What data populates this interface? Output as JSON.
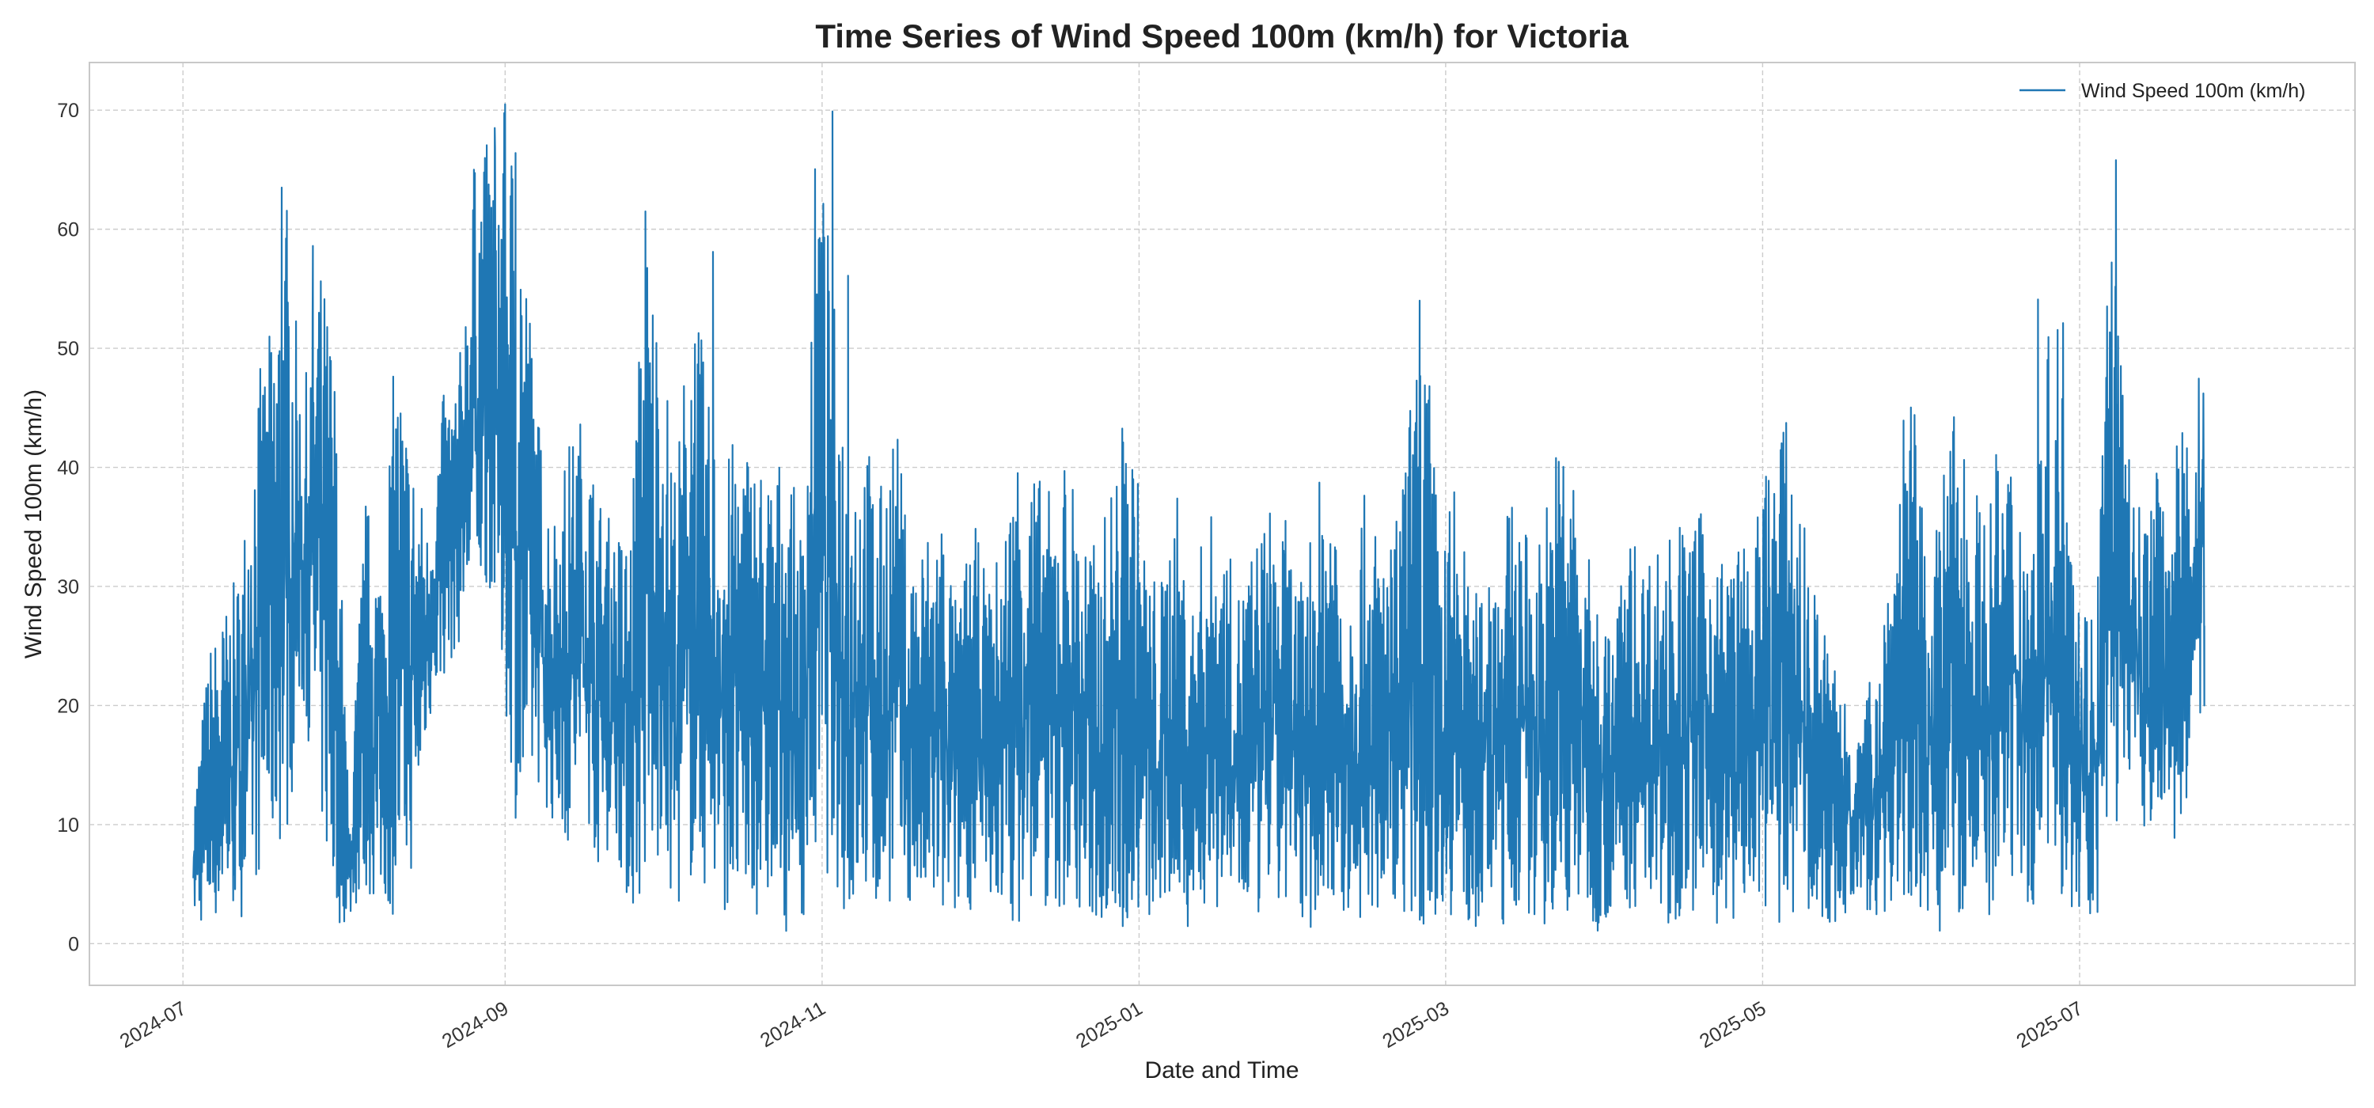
{
  "chart_data": {
    "type": "line",
    "title": "Time Series of Wind Speed 100m (km/h) for Victoria",
    "xlabel": "Date and Time",
    "ylabel": "Wind Speed 100m (km/h)",
    "x_range": [
      "2024-06-13",
      "2025-08-23"
    ],
    "ylim": [
      -3.5,
      74
    ],
    "x_ticks": [
      "2024-07-01",
      "2024-09-01",
      "2024-11-01",
      "2025-01-01",
      "2025-03-01",
      "2025-05-01",
      "2025-07-01"
    ],
    "x_tick_labels": [
      "2024-07",
      "2024-09",
      "2024-11",
      "2025-01",
      "2025-03",
      "2025-05",
      "2025-07"
    ],
    "y_ticks": [
      0,
      10,
      20,
      30,
      40,
      50,
      60,
      70
    ],
    "y_tick_labels": [
      "0",
      "10",
      "20",
      "30",
      "40",
      "50",
      "60",
      "70"
    ],
    "grid": true,
    "legend_position": "top-right",
    "series": [
      {
        "name": "Wind Speed 100m (km/h)",
        "color": "#1f77b4",
        "x": [
          "2024-07-03",
          "2024-07-06",
          "2024-07-09",
          "2024-07-12",
          "2024-07-15",
          "2024-07-18",
          "2024-07-21",
          "2024-07-24",
          "2024-07-27",
          "2024-07-30",
          "2024-08-02",
          "2024-08-05",
          "2024-08-08",
          "2024-08-11",
          "2024-08-14",
          "2024-08-17",
          "2024-08-20",
          "2024-08-23",
          "2024-08-26",
          "2024-08-29",
          "2024-09-01",
          "2024-09-04",
          "2024-09-07",
          "2024-09-10",
          "2024-09-13",
          "2024-09-16",
          "2024-09-19",
          "2024-09-22",
          "2024-09-25",
          "2024-09-28",
          "2024-10-01",
          "2024-10-04",
          "2024-10-07",
          "2024-10-10",
          "2024-10-13",
          "2024-10-16",
          "2024-10-19",
          "2024-10-22",
          "2024-10-25",
          "2024-10-28",
          "2024-10-31",
          "2024-11-03",
          "2024-11-06",
          "2024-11-09",
          "2024-11-12",
          "2024-11-15",
          "2024-11-18",
          "2024-11-21",
          "2024-11-24",
          "2024-11-27",
          "2024-11-30",
          "2024-12-03",
          "2024-12-06",
          "2024-12-09",
          "2024-12-12",
          "2024-12-15",
          "2024-12-18",
          "2024-12-21",
          "2024-12-24",
          "2024-12-27",
          "2024-12-30",
          "2025-01-02",
          "2025-01-05",
          "2025-01-08",
          "2025-01-11",
          "2025-01-14",
          "2025-01-17",
          "2025-01-20",
          "2025-01-23",
          "2025-01-26",
          "2025-01-29",
          "2025-02-01",
          "2025-02-04",
          "2025-02-07",
          "2025-02-10",
          "2025-02-13",
          "2025-02-16",
          "2025-02-19",
          "2025-02-22",
          "2025-02-25",
          "2025-02-28",
          "2025-03-03",
          "2025-03-06",
          "2025-03-09",
          "2025-03-12",
          "2025-03-15",
          "2025-03-18",
          "2025-03-21",
          "2025-03-24",
          "2025-03-27",
          "2025-03-30",
          "2025-04-02",
          "2025-04-05",
          "2025-04-08",
          "2025-04-11",
          "2025-04-14",
          "2025-04-17",
          "2025-04-20",
          "2025-04-23",
          "2025-04-26",
          "2025-04-29",
          "2025-05-02",
          "2025-05-05",
          "2025-05-08",
          "2025-05-11",
          "2025-05-14",
          "2025-05-17",
          "2025-05-20",
          "2025-05-23",
          "2025-05-26",
          "2025-05-29",
          "2025-06-01",
          "2025-06-04",
          "2025-06-07",
          "2025-06-10",
          "2025-06-13",
          "2025-06-16",
          "2025-06-19",
          "2025-06-22",
          "2025-06-25",
          "2025-06-28",
          "2025-07-01",
          "2025-07-04",
          "2025-07-07",
          "2025-07-10",
          "2025-07-13",
          "2025-07-16",
          "2025-07-19",
          "2025-07-22",
          "2025-07-25"
        ],
        "low": [
          2,
          1,
          3,
          2,
          5,
          7,
          9,
          20,
          12,
          1,
          2,
          4,
          3,
          2,
          6,
          18,
          22,
          25,
          28,
          30,
          20,
          6,
          14,
          10,
          8,
          12,
          6,
          9,
          2,
          4,
          5,
          3,
          5,
          4,
          3,
          1,
          2,
          3,
          1,
          2,
          5,
          6,
          1,
          3,
          2,
          4,
          3,
          2,
          1,
          2,
          3,
          2,
          3,
          1,
          4,
          2,
          3,
          2,
          1,
          2,
          0,
          2,
          1,
          3,
          1,
          2,
          3,
          2,
          1,
          3,
          2,
          2,
          1,
          3,
          2,
          1,
          2,
          4,
          2,
          1,
          3,
          2,
          1,
          2,
          1,
          3,
          2,
          1,
          2,
          3,
          1,
          2,
          3,
          2,
          1,
          2,
          3,
          1,
          2,
          1,
          3,
          2,
          1,
          2,
          3,
          1,
          2,
          3,
          2,
          1,
          2,
          3,
          1,
          2,
          3,
          1,
          2,
          4,
          3,
          8,
          3,
          1,
          2,
          5,
          15,
          10,
          5,
          8,
          12,
          20
        ],
        "high": [
          12,
          25,
          28,
          32,
          47,
          52,
          63,
          45,
          58,
          52,
          10,
          38,
          33,
          51,
          42,
          35,
          46,
          48,
          65,
          68,
          70,
          66,
          46,
          36,
          42,
          45,
          38,
          35,
          35,
          61,
          52,
          40,
          58,
          46,
          40,
          44,
          42,
          40,
          42,
          35,
          70,
          56,
          42,
          44,
          38,
          45,
          33,
          35,
          38,
          28,
          36,
          30,
          35,
          44,
          40,
          38,
          42,
          36,
          33,
          40,
          47,
          34,
          30,
          39,
          28,
          37,
          35,
          30,
          34,
          37,
          36,
          30,
          38,
          42,
          30,
          38,
          35,
          34,
          45,
          54,
          33,
          40,
          28,
          34,
          36,
          38,
          32,
          40,
          45,
          35,
          30,
          26,
          35,
          33,
          34,
          36,
          35,
          37,
          33,
          34,
          33,
          42,
          45,
          38,
          30,
          25,
          22,
          18,
          26,
          36,
          51,
          35,
          36,
          48,
          40,
          36,
          44,
          40,
          36,
          51,
          55,
          31,
          28,
          66,
          42,
          36,
          40,
          42,
          44,
          51
        ],
        "sample_points": [
          {
            "x": "2024-07-20",
            "y": 63.5
          },
          {
            "x": "2024-07-26",
            "y": 58.6
          },
          {
            "x": "2024-08-26",
            "y": 65.0
          },
          {
            "x": "2024-08-30",
            "y": 68.5
          },
          {
            "x": "2024-09-01",
            "y": 70.5
          },
          {
            "x": "2024-09-03",
            "y": 66.4
          },
          {
            "x": "2024-09-28",
            "y": 61.5
          },
          {
            "x": "2024-10-11",
            "y": 58.1
          },
          {
            "x": "2024-11-03",
            "y": 69.9
          },
          {
            "x": "2024-11-06",
            "y": 56.1
          },
          {
            "x": "2025-02-24",
            "y": 54.0
          },
          {
            "x": "2025-06-23",
            "y": 54.1
          },
          {
            "x": "2025-07-08",
            "y": 65.8
          },
          {
            "x": "2025-07-25",
            "y": 26.7
          }
        ]
      }
    ]
  }
}
